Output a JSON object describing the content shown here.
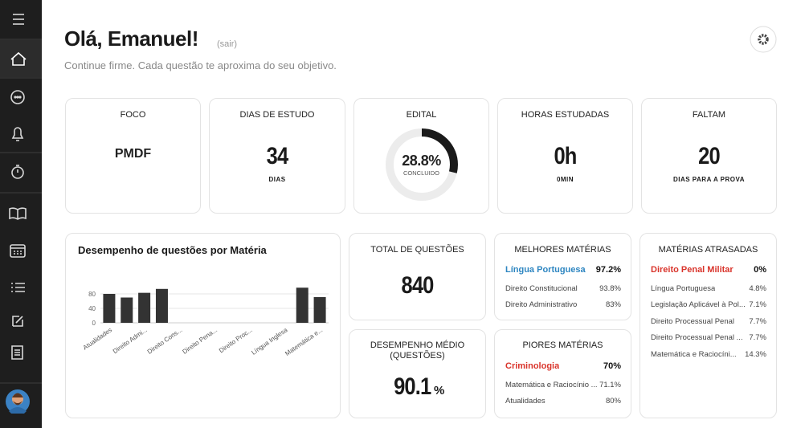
{
  "header": {
    "greeting": "Olá, Emanuel!",
    "logout": "(sair)",
    "subtitle": "Continue firme. Cada questão te aproxima do seu objetivo."
  },
  "stats": {
    "focus": {
      "title": "FOCO",
      "value": "PMDF"
    },
    "study_days": {
      "title": "DIAS DE ESTUDO",
      "value": "34",
      "unit": "DIAS"
    },
    "edital": {
      "title": "EDITAL",
      "value": 28.8,
      "value_label": "28.8%",
      "caption": "CONCLUIDO"
    },
    "hours": {
      "title": "HORAS ESTUDADAS",
      "value": "0h",
      "unit": "0MIN"
    },
    "remaining": {
      "title": "FALTAM",
      "value": "20",
      "unit": "DIAS PARA A PROVA"
    }
  },
  "chart_data": {
    "type": "bar",
    "title": "Desempenho de questões por Matéria",
    "categories": [
      "Atualidades",
      null,
      "Direito Admi...",
      null,
      "Direito Cons...",
      null,
      "Direito Pena...",
      null,
      "Direito Proc...",
      null,
      "Língua Inglesa",
      null,
      "Matemática e..."
    ],
    "values": [
      80,
      70,
      83,
      93.8,
      0,
      0,
      0,
      0,
      0,
      0,
      0,
      97.2,
      71.1
    ],
    "color": "#333333",
    "ylim": [
      0,
      100
    ],
    "yticks": [
      0,
      40,
      80
    ],
    "grid": true
  },
  "total_questions": {
    "title": "TOTAL DE QUESTÕES",
    "value": "840"
  },
  "average": {
    "title": "DESEMPENHO MÉDIO (QUESTÕES)",
    "value": "90.1",
    "unit": "%"
  },
  "best": {
    "title": "MELHORES MATÉRIAS",
    "rows": [
      [
        "Língua Portuguesa",
        "97.2%"
      ],
      [
        "Direito Constitucional",
        "93.8%"
      ],
      [
        "Direito Administrativo",
        "83%"
      ]
    ]
  },
  "worst": {
    "title": "PIORES MATÉRIAS",
    "rows": [
      [
        "Criminologia",
        "70%"
      ],
      [
        "Matemática e Raciocínio ...",
        "71.1%"
      ],
      [
        "Atualidades",
        "80%"
      ]
    ]
  },
  "late": {
    "title": "MATÉRIAS ATRASADAS",
    "rows": [
      [
        "Direito Penal Militar",
        "0%"
      ],
      [
        "Língua Portuguesa",
        "4.8%"
      ],
      [
        "Legislação Aplicável à Pol...",
        "7.1%"
      ],
      [
        "Direito Processual Penal",
        "7.7%"
      ],
      [
        "Direito Processual Penal ...",
        "7.7%"
      ],
      [
        "Matemática e Raciocíni...",
        "14.3%"
      ]
    ]
  }
}
